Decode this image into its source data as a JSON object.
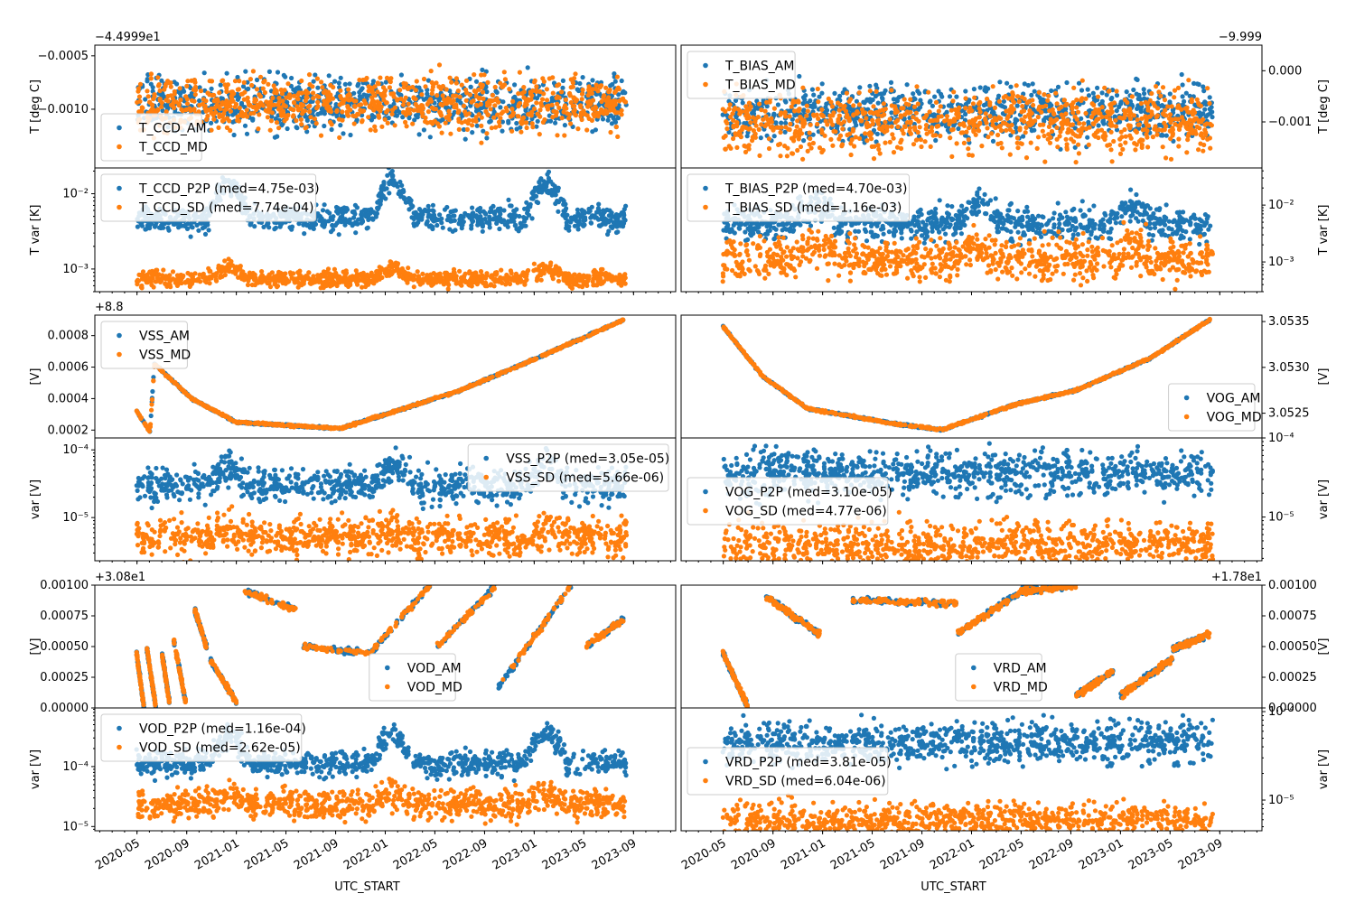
{
  "colors": {
    "am": "#1f77b4",
    "md": "#ff7f0e"
  },
  "x_axis": {
    "label": "UTC_START",
    "ticks": [
      "2020-05",
      "2020-09",
      "2021-01",
      "2021-05",
      "2021-09",
      "2022-01",
      "2022-05",
      "2022-09",
      "2023-01",
      "2023-05",
      "2023-09"
    ]
  },
  "chart_data": [
    {
      "id": "t-ccd",
      "type": "scatter",
      "ylabel": "T [deg C]",
      "offset_label": "−4.4999e1",
      "yscale": "linear",
      "ylim": [
        -0.00155,
        -0.0004
      ],
      "yticks": [
        "−0.0005",
        "−0.0010"
      ],
      "ytick_values": [
        -0.0005,
        -0.001
      ],
      "legend_loc": "lower-left",
      "series": [
        {
          "name": "T_CCD_AM",
          "color_key": "am",
          "pattern": "noise",
          "center": -0.00095,
          "spread": 0.00012
        },
        {
          "name": "T_CCD_MD",
          "color_key": "md",
          "pattern": "noise",
          "center": -0.00095,
          "spread": 0.00012
        }
      ]
    },
    {
      "id": "t-bias",
      "type": "scatter",
      "ylabel": "T [deg C]",
      "offset_label": "−9.999",
      "yscale": "linear",
      "ylim": [
        -0.0019,
        0.0005
      ],
      "yticks": [
        "0.000",
        "−0.001"
      ],
      "ytick_values": [
        0.0,
        -0.001
      ],
      "legend_loc": "top-left",
      "series": [
        {
          "name": "T_BIAS_AM",
          "color_key": "am",
          "pattern": "noise",
          "center": -0.0008,
          "spread": 0.00025
        },
        {
          "name": "T_BIAS_MD",
          "color_key": "md",
          "pattern": "noise",
          "center": -0.001,
          "spread": 0.0003
        }
      ]
    },
    {
      "id": "t-var-left",
      "type": "scatter",
      "ylabel": "T var [K]",
      "offset_label": "",
      "yscale": "log",
      "ylim": [
        0.0005,
        0.022
      ],
      "yticks": [
        "10⁻³",
        "10⁻²"
      ],
      "ytick_values": [
        0.001,
        0.01
      ],
      "legend_loc": "top-left",
      "series": [
        {
          "name": "T_CCD_P2P (med=4.75e-03)",
          "color_key": "am",
          "pattern": "bumps",
          "center": 0.0047,
          "spread": 0.08,
          "bump": 3.3
        },
        {
          "name": "T_CCD_SD (med=7.74e-04)",
          "color_key": "md",
          "pattern": "bumps",
          "center": 0.00074,
          "spread": 0.05,
          "bump": 1.45
        }
      ]
    },
    {
      "id": "t-var-right",
      "type": "scatter",
      "ylabel": "T var [K]",
      "offset_label": "",
      "yscale": "log",
      "ylim": [
        0.0003,
        0.045
      ],
      "yticks": [
        "10⁻³",
        "10⁻²"
      ],
      "ytick_values": [
        0.001,
        0.01
      ],
      "legend_loc": "top-left",
      "series": [
        {
          "name": "T_BIAS_P2P (med=4.70e-03)",
          "color_key": "am",
          "pattern": "bumps",
          "center": 0.0047,
          "spread": 0.14,
          "bump": 2.5
        },
        {
          "name": "T_BIAS_SD (med=1.16e-03)",
          "color_key": "md",
          "pattern": "bumps",
          "center": 0.0011,
          "spread": 0.18,
          "bump": 1.9
        }
      ]
    },
    {
      "id": "vss",
      "type": "scatter",
      "ylabel": "[V]",
      "offset_label": "+8.8",
      "yscale": "linear",
      "ylim": [
        0.00015,
        0.00093
      ],
      "yticks": [
        "0.0002",
        "0.0004",
        "0.0006",
        "0.0008"
      ],
      "ytick_values": [
        0.0002,
        0.0004,
        0.0006,
        0.0008
      ],
      "legend_loc": "top-left",
      "series": [
        {
          "name": "VSS_AM",
          "color_key": "am",
          "pattern": "curve",
          "knots": [
            [
              2020.33,
              0.00032
            ],
            [
              2020.42,
              0.00019
            ],
            [
              2020.45,
              0.00062
            ],
            [
              2020.7,
              0.0004
            ],
            [
              2021.0,
              0.00025
            ],
            [
              2021.7,
              0.00021
            ],
            [
              2022.0,
              0.0003
            ],
            [
              2022.5,
              0.00045
            ],
            [
              2023.0,
              0.00065
            ],
            [
              2023.6,
              0.0009
            ]
          ]
        },
        {
          "name": "VSS_MD",
          "color_key": "md",
          "pattern": "curve",
          "knots": [
            [
              2020.33,
              0.00032
            ],
            [
              2020.42,
              0.00019
            ],
            [
              2020.45,
              0.00062
            ],
            [
              2020.7,
              0.0004
            ],
            [
              2021.0,
              0.00025
            ],
            [
              2021.7,
              0.00021
            ],
            [
              2022.0,
              0.0003
            ],
            [
              2022.5,
              0.00045
            ],
            [
              2023.0,
              0.00065
            ],
            [
              2023.6,
              0.0009
            ]
          ]
        }
      ]
    },
    {
      "id": "vog",
      "type": "scatter",
      "ylabel": "[V]",
      "offset_label": "",
      "yscale": "linear",
      "ylim": [
        3.05223,
        3.05357
      ],
      "yticks": [
        "3.0525",
        "3.0530",
        "3.0535"
      ],
      "ytick_values": [
        3.0525,
        3.053,
        3.0535
      ],
      "legend_loc": "bottom-right",
      "series": [
        {
          "name": "VOG_AM",
          "color_key": "am",
          "pattern": "curve",
          "knots": [
            [
              2020.33,
              3.05345
            ],
            [
              2020.6,
              3.0529
            ],
            [
              2020.9,
              3.05255
            ],
            [
              2021.5,
              3.05238
            ],
            [
              2021.8,
              3.05232
            ],
            [
              2022.3,
              3.0526
            ],
            [
              2022.7,
              3.05275
            ],
            [
              2023.2,
              3.0531
            ],
            [
              2023.6,
              3.05352
            ]
          ]
        },
        {
          "name": "VOG_MD",
          "color_key": "md",
          "pattern": "curve",
          "knots": [
            [
              2020.33,
              3.05345
            ],
            [
              2020.6,
              3.0529
            ],
            [
              2020.9,
              3.05255
            ],
            [
              2021.5,
              3.05238
            ],
            [
              2021.8,
              3.05232
            ],
            [
              2022.3,
              3.0526
            ],
            [
              2022.7,
              3.05275
            ],
            [
              2023.2,
              3.0531
            ],
            [
              2023.6,
              3.05352
            ]
          ]
        }
      ]
    },
    {
      "id": "v-var-left",
      "type": "scatter",
      "ylabel": "var [V]",
      "offset_label": "",
      "yscale": "log",
      "ylim": [
        2.3e-06,
        0.00015
      ],
      "yticks": [
        "10⁻⁵",
        "10⁻⁴"
      ],
      "ytick_values": [
        1e-05,
        0.0001
      ],
      "legend_loc": "top-right",
      "series": [
        {
          "name": "VSS_P2P (med=3.05e-05)",
          "color_key": "am",
          "pattern": "bumps",
          "center": 3e-05,
          "spread": 0.12,
          "bump": 2.0
        },
        {
          "name": "VSS_SD (med=5.66e-06)",
          "color_key": "md",
          "pattern": "bumps",
          "center": 5.2e-06,
          "spread": 0.14,
          "bump": 1.3
        }
      ]
    },
    {
      "id": "v-var-right",
      "type": "scatter",
      "ylabel": "var [V]",
      "offset_label": "",
      "yscale": "log",
      "ylim": [
        2.8e-06,
        0.0001
      ],
      "yticks": [
        "10⁻⁵",
        "10⁻⁴"
      ],
      "ytick_values": [
        1e-05,
        0.0001
      ],
      "legend_loc": "center-left",
      "series": [
        {
          "name": "VOG_P2P (med=3.10e-05)",
          "color_key": "am",
          "pattern": "noise-log",
          "center": 3.6e-05,
          "spread": 0.14
        },
        {
          "name": "VOG_SD (med=4.77e-06)",
          "color_key": "md",
          "pattern": "noise-log",
          "center": 4.4e-06,
          "spread": 0.14
        }
      ]
    },
    {
      "id": "vod",
      "type": "scatter",
      "ylabel": "[V]",
      "offset_label": "+3.08e1",
      "yscale": "linear",
      "ylim": [
        0.0,
        0.001
      ],
      "yticks": [
        "0.00000",
        "0.00025",
        "0.00050",
        "0.00075",
        "0.00100"
      ],
      "ytick_values": [
        0.0,
        0.00025,
        0.0005,
        0.00075,
        0.001
      ],
      "legend_loc": "bottom-center",
      "series": [
        {
          "name": "VOD_AM",
          "color_key": "am",
          "pattern": "segments",
          "segs": [
            [
              2020.33,
              2020.38,
              0.00045,
              0.0
            ],
            [
              2020.4,
              2020.46,
              0.00048,
              0.0
            ],
            [
              2020.5,
              2020.55,
              0.00045,
              5e-05
            ],
            [
              2020.58,
              2020.66,
              0.00055,
              5e-05
            ],
            [
              2020.72,
              2020.8,
              0.0008,
              0.0005
            ],
            [
              2020.82,
              2021.0,
              0.0004,
              5e-05
            ],
            [
              2021.05,
              2021.4,
              0.00095,
              0.0008
            ],
            [
              2021.45,
              2021.9,
              0.0005,
              0.00045
            ],
            [
              2021.9,
              2022.3,
              0.00045,
              0.001
            ],
            [
              2022.35,
              2022.75,
              0.0005,
              0.001
            ],
            [
              2022.75,
              2023.25,
              0.00015,
              0.001
            ],
            [
              2023.35,
              2023.6,
              0.0005,
              0.00072
            ]
          ]
        },
        {
          "name": "VOD_MD",
          "color_key": "md",
          "pattern": "segments",
          "segs": [
            [
              2020.33,
              2020.38,
              0.00045,
              0.0
            ],
            [
              2020.4,
              2020.46,
              0.00048,
              0.0
            ],
            [
              2020.5,
              2020.55,
              0.00045,
              5e-05
            ],
            [
              2020.58,
              2020.66,
              0.00055,
              5e-05
            ],
            [
              2020.72,
              2020.8,
              0.0008,
              0.0005
            ],
            [
              2020.82,
              2021.0,
              0.0004,
              5e-05
            ],
            [
              2021.05,
              2021.4,
              0.00095,
              0.0008
            ],
            [
              2021.45,
              2021.9,
              0.0005,
              0.00045
            ],
            [
              2021.9,
              2022.3,
              0.00045,
              0.001
            ],
            [
              2022.35,
              2022.75,
              0.0005,
              0.001
            ],
            [
              2022.75,
              2023.25,
              0.00015,
              0.001
            ],
            [
              2023.35,
              2023.6,
              0.0005,
              0.00072
            ]
          ]
        }
      ]
    },
    {
      "id": "vrd",
      "type": "scatter",
      "ylabel": "[V]",
      "offset_label": "+1.78e1",
      "yscale": "linear",
      "ylim": [
        0.0,
        0.001
      ],
      "yticks": [
        "0.00000",
        "0.00025",
        "0.00050",
        "0.00075",
        "0.00100"
      ],
      "ytick_values": [
        0.0,
        0.00025,
        0.0005,
        0.00075,
        0.001
      ],
      "legend_loc": "bottom-center",
      "series": [
        {
          "name": "VRD_AM",
          "color_key": "am",
          "pattern": "segments",
          "segs": [
            [
              2020.33,
              2020.5,
              0.00045,
              0.0
            ],
            [
              2020.62,
              2020.98,
              0.0009,
              0.0006
            ],
            [
              2021.2,
              2021.9,
              0.00088,
              0.00085
            ],
            [
              2021.9,
              2022.4,
              0.0006,
              0.001
            ],
            [
              2022.35,
              2022.7,
              0.00095,
              0.001
            ],
            [
              2022.7,
              2022.95,
              0.0001,
              0.0003
            ],
            [
              2023.0,
              2023.35,
              0.0001,
              0.0004
            ],
            [
              2023.35,
              2023.6,
              0.00048,
              0.0006
            ]
          ]
        },
        {
          "name": "VRD_MD",
          "color_key": "md",
          "pattern": "segments",
          "segs": [
            [
              2020.33,
              2020.5,
              0.00045,
              0.0
            ],
            [
              2020.62,
              2020.98,
              0.0009,
              0.0006
            ],
            [
              2021.2,
              2021.9,
              0.00088,
              0.00085
            ],
            [
              2021.9,
              2022.4,
              0.0006,
              0.001
            ],
            [
              2022.35,
              2022.7,
              0.00095,
              0.001
            ],
            [
              2022.7,
              2022.95,
              0.0001,
              0.0003
            ],
            [
              2023.0,
              2023.35,
              0.0001,
              0.0004
            ],
            [
              2023.35,
              2023.6,
              0.00048,
              0.0006
            ]
          ]
        }
      ]
    },
    {
      "id": "vod-var",
      "type": "scatter",
      "ylabel": "var [V]",
      "offset_label": "",
      "yscale": "log",
      "ylim": [
        8.5e-06,
        0.00095
      ],
      "yticks": [
        "10⁻⁵",
        "10⁻⁴"
      ],
      "ytick_values": [
        1e-05,
        0.0001
      ],
      "legend_loc": "top-left",
      "series": [
        {
          "name": "VOD_P2P (med=1.16e-04)",
          "color_key": "am",
          "pattern": "bumps",
          "center": 0.00011,
          "spread": 0.1,
          "bump": 3.4
        },
        {
          "name": "VOD_SD (med=2.62e-05)",
          "color_key": "md",
          "pattern": "bumps",
          "center": 2.4e-05,
          "spread": 0.12,
          "bump": 1.5
        }
      ]
    },
    {
      "id": "vrd-var",
      "type": "scatter",
      "ylabel": "var [V]",
      "offset_label": "",
      "yscale": "log",
      "ylim": [
        4.5e-06,
        0.00011
      ],
      "yticks": [
        "10⁻⁵",
        "10⁻⁴"
      ],
      "ytick_values": [
        1e-05,
        0.0001
      ],
      "legend_loc": "center-left",
      "series": [
        {
          "name": "VRD_P2P (med=3.81e-05)",
          "color_key": "am",
          "pattern": "noise-log",
          "center": 4.5e-05,
          "spread": 0.11
        },
        {
          "name": "VRD_SD (med=6.04e-06)",
          "color_key": "md",
          "pattern": "noise-log",
          "center": 5.8e-06,
          "spread": 0.1
        }
      ]
    }
  ]
}
